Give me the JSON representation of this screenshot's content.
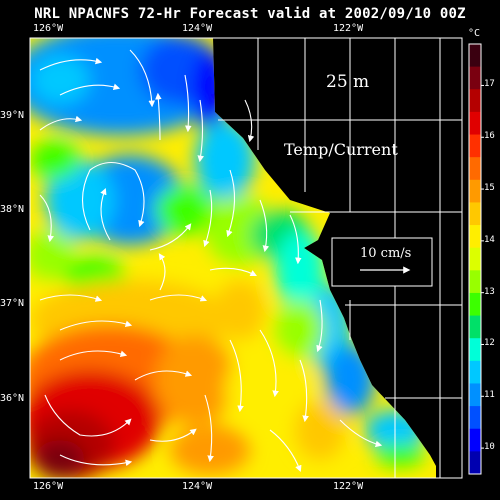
{
  "title": "NRL NPACNFS 72-Hr Forecast valid at 2002/09/10 00Z",
  "longitude_labels": [
    "126°W",
    "124°W",
    "122°W"
  ],
  "latitude_labels": [
    "39°N",
    "38°N",
    "37°N",
    "36°N"
  ],
  "colorbar": {
    "unit": "°C",
    "ticks": [
      "17",
      "16",
      "15",
      "14",
      "13",
      "12",
      "11",
      "10"
    ],
    "min": 9.5,
    "max": 17.8,
    "colors": [
      "#3a0010",
      "#7a0010",
      "#b40000",
      "#e00000",
      "#ff3000",
      "#ff6a00",
      "#ff9a00",
      "#ffc800",
      "#ffee00",
      "#dcff00",
      "#98ff00",
      "#3cff00",
      "#00e068",
      "#00ffd8",
      "#00c8ff",
      "#0090ff",
      "#0050ff",
      "#0000ff",
      "#0000b0"
    ]
  },
  "depth_label": "25 m",
  "field_label": "Temp/Current",
  "legend": {
    "speed_label": "10 cm/s"
  },
  "colors": {
    "background": "#000000",
    "land": "#000000",
    "grid": "#ffffff",
    "vectors": "#ffffff"
  }
}
